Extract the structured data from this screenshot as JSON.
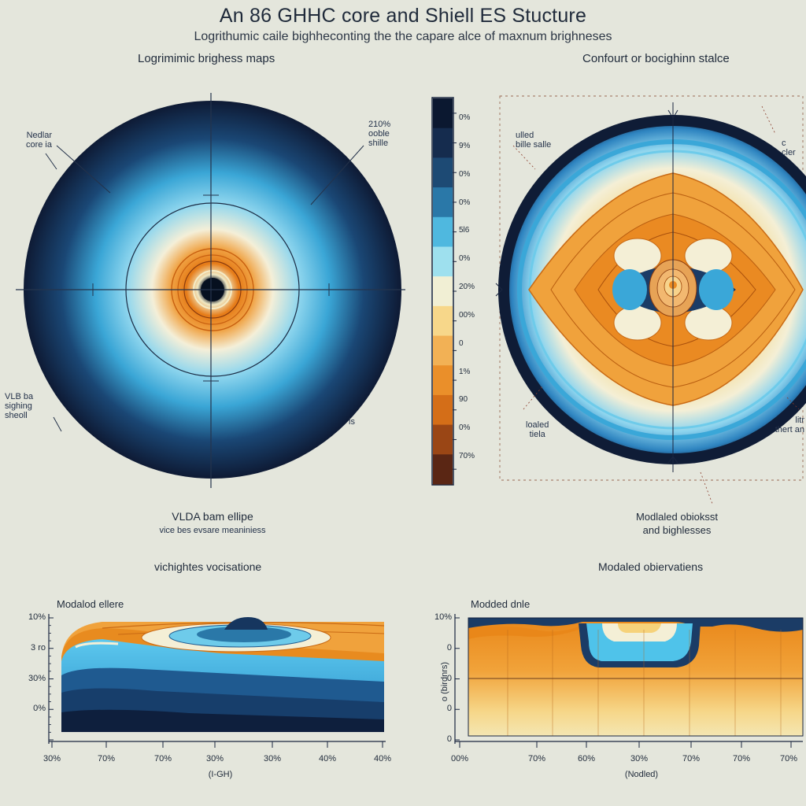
{
  "header": {
    "title": "An 86 GHHC core and Shiell ES Stucture",
    "subtitle": "Logrithumic caile bighheconting the the capare alce of maxnum brighneses"
  },
  "left_panel": {
    "title": "Logrimimic brighess maps",
    "label_core": [
      "Nedlar",
      "core ia"
    ],
    "label_shell_pct": [
      "210%",
      "ooble",
      "shille"
    ],
    "label_vlba": [
      "VLB ba",
      "sighing",
      "sheoll"
    ],
    "label_edge": "is",
    "beam_title": "VLDA bam ellipe",
    "beam_sub": "vice bes evsare meaniniess"
  },
  "colorbar": {
    "ticks": [
      "0%",
      "9%",
      "0%",
      "0%",
      "5l6",
      "0%",
      "20%",
      "00%",
      "0",
      "1%",
      "90",
      "0%",
      "70%"
    ],
    "colors": [
      "#0b1830",
      "#152c4e",
      "#1d4a74",
      "#2a78a8",
      "#4fb8df",
      "#9ee0ee",
      "#f1efd4",
      "#f7d78a",
      "#f2b155",
      "#ea8f2a",
      "#d46e18",
      "#9a4615",
      "#5a2614"
    ]
  },
  "right_panel": {
    "title": "Confourt or bocighinn stalce",
    "label_tl": [
      "ulled",
      "bille salle"
    ],
    "label_tr": [
      "c",
      "cler"
    ],
    "label_bl": [
      "loaled",
      "tiela"
    ],
    "label_br": [
      "litr",
      "thert an"
    ],
    "model_title": [
      "Modlaled obioksst",
      "and bighlesses"
    ]
  },
  "bottom_left": {
    "section_title": "vichightes vocisatione",
    "plot_title": "Modalod ellere",
    "y_ticks": [
      "10%",
      "3 ro",
      "30%",
      "0%",
      ""
    ],
    "x_ticks": [
      "30%",
      "70%",
      "70%",
      "30%",
      "30%",
      "40%",
      "40%"
    ],
    "x_label": "(I-GH)"
  },
  "bottom_right": {
    "section_title": "Modaled obiervatiens",
    "plot_title": "Modded dnle",
    "y_ticks": [
      "10%",
      "0",
      "0",
      "0",
      "0"
    ],
    "y_label": "o (birdnrs)",
    "x_ticks": [
      "00%",
      "70%",
      "60%",
      "30%",
      "70%",
      "70%",
      "70%"
    ],
    "x_label": "(Nodled)"
  },
  "colors": {
    "background": "#e4e6dc",
    "navy": "#0f1e3a",
    "cyan": "#4fc3ea",
    "orange": "#ee8a1f",
    "cream": "#f3ecc8"
  }
}
